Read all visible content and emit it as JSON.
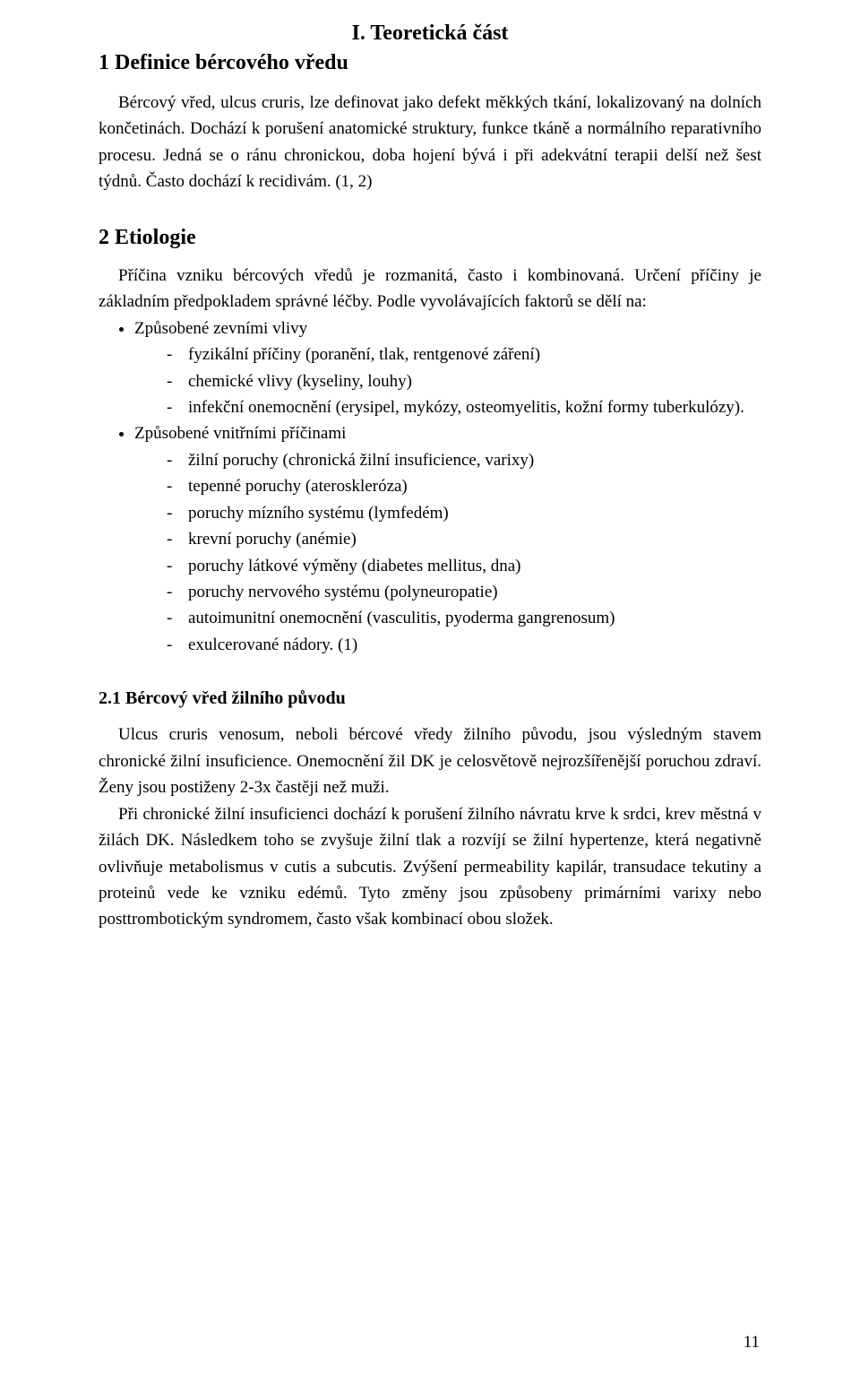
{
  "doc": {
    "part_title": "I. Teoretická část",
    "s1": {
      "heading": "1 Definice bércového vředu",
      "p1": "Bércový vřed, ulcus cruris, lze definovat jako defekt měkkých tkání, lokalizovaný na dolních končetinách. Dochází k porušení anatomické struktury, funkce tkáně a normálního reparativního procesu. Jedná se o ránu chronickou, doba hojení bývá i při adekvátní terapii delší než šest týdnů. Často dochází k recidivám. (1, 2)"
    },
    "s2": {
      "heading": "2 Etiologie",
      "p1": "Příčina vzniku bércových vředů je rozmanitá, často i kombinovaná. Určení příčiny je základním předpokladem správné léčby. Podle vyvolávajících faktorů se dělí na:",
      "b1": {
        "label": "Způsobené zevními vlivy",
        "items": [
          "fyzikální příčiny (poranění, tlak, rentgenové záření)",
          "chemické vlivy (kyseliny, louhy)",
          "infekční onemocnění (erysipel, mykózy, osteomyelitis, kožní formy tuberkulózy)."
        ]
      },
      "b2": {
        "label": "Způsobené vnitřními příčinami",
        "items": [
          "žilní poruchy (chronická žilní insuficience, varixy)",
          "tepenné poruchy (ateroskleróza)",
          "poruchy mízního systému (lymfedém)",
          "krevní poruchy (anémie)",
          "poruchy látkové výměny (diabetes mellitus, dna)",
          "poruchy nervového systému (polyneuropatie)",
          "autoimunitní onemocnění (vasculitis, pyoderma gangrenosum)",
          "exulcerované nádory. (1)"
        ]
      }
    },
    "s21": {
      "heading": "2.1 Bércový vřed žilního původu",
      "p1": "Ulcus cruris venosum, neboli bércové vředy žilního původu, jsou výsledným stavem chronické žilní insuficience. Onemocnění žil DK je celosvětově nejrozšířenější poruchou zdraví. Ženy jsou postiženy 2-3x častěji než muži.",
      "p2": "Při chronické žilní insuficienci dochází k porušení žilního návratu krve k srdci, krev městná v žilách DK. Následkem toho se zvyšuje žilní tlak a rozvíjí se žilní hypertenze, která negativně ovlivňuje metabolismus v cutis a subcutis. Zvýšení permeability kapilár, transudace tekutiny a proteinů vede ke vzniku edémů. Tyto změny jsou způsobeny primárními varixy nebo posttrombotickým syndromem, často však kombinací obou složek."
    },
    "page_number": "11"
  }
}
